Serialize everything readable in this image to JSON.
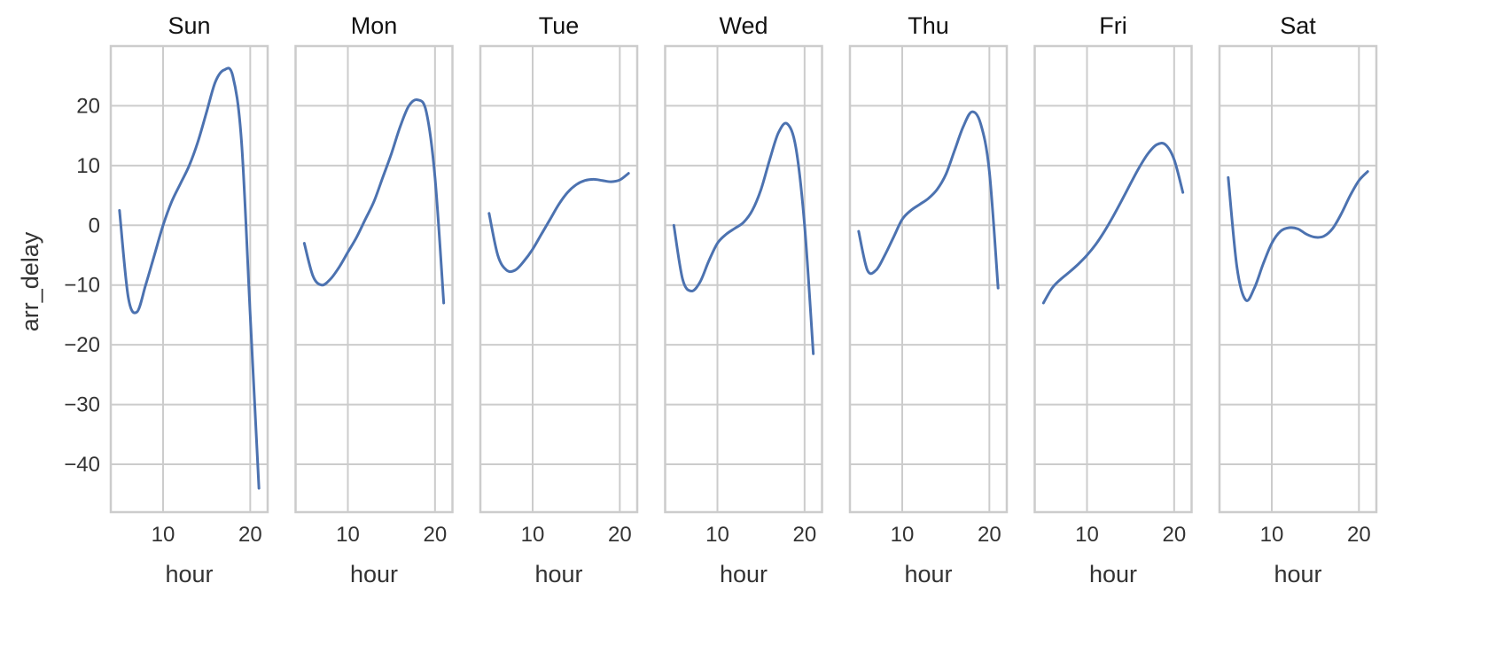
{
  "chart_data": {
    "type": "line",
    "facet": "day",
    "xlabel": "hour",
    "ylabel": "arr_delay",
    "xlim": [
      4,
      22
    ],
    "ylim": [
      -48,
      30
    ],
    "xticks": [
      10,
      20
    ],
    "yticks": [
      -40,
      -30,
      -20,
      -10,
      0,
      10,
      20
    ],
    "grid": true,
    "color": "#4c72b0",
    "panels": [
      {
        "title": "Sun",
        "x": [
          5,
          6,
          7,
          8,
          9,
          10,
          11,
          12,
          13,
          14,
          15,
          16,
          17,
          18,
          19,
          20,
          21
        ],
        "y": [
          2.5,
          -12,
          -14.5,
          -10,
          -5,
          0,
          4,
          7,
          10,
          14,
          19,
          24,
          26,
          25,
          14,
          -15,
          -44
        ]
      },
      {
        "title": "Mon",
        "x": [
          5,
          6,
          7,
          8,
          9,
          10,
          11,
          12,
          13,
          14,
          15,
          16,
          17,
          18,
          19,
          20,
          21
        ],
        "y": [
          -3,
          -8.5,
          -10,
          -9,
          -7,
          -4.5,
          -2,
          1,
          4,
          8,
          12,
          16.5,
          20,
          21,
          19,
          8,
          -13
        ]
      },
      {
        "title": "Tue",
        "x": [
          5,
          6,
          7,
          8,
          9,
          10,
          11,
          12,
          13,
          14,
          15,
          16,
          17,
          18,
          19,
          20,
          21
        ],
        "y": [
          2,
          -5,
          -7.5,
          -7.5,
          -6,
          -4,
          -1.5,
          1,
          3.5,
          5.5,
          6.8,
          7.5,
          7.7,
          7.5,
          7.3,
          7.6,
          8.7
        ]
      },
      {
        "title": "Wed",
        "x": [
          5,
          6,
          7,
          8,
          9,
          10,
          11,
          12,
          13,
          14,
          15,
          16,
          17,
          18,
          19,
          20,
          21
        ],
        "y": [
          0,
          -9,
          -11,
          -9.5,
          -6,
          -3,
          -1.5,
          -0.5,
          0.5,
          2.5,
          6,
          11,
          15.5,
          17,
          13,
          0,
          -21.5
        ]
      },
      {
        "title": "Thu",
        "x": [
          5,
          6,
          7,
          8,
          9,
          10,
          11,
          12,
          13,
          14,
          15,
          16,
          17,
          18,
          19,
          20,
          21
        ],
        "y": [
          -1,
          -7.5,
          -7.5,
          -5,
          -2,
          1,
          2.5,
          3.5,
          4.5,
          6,
          8.5,
          12.5,
          16.5,
          19,
          17,
          9,
          -10.5
        ]
      },
      {
        "title": "Fri",
        "x": [
          5,
          6,
          7,
          8,
          9,
          10,
          11,
          12,
          13,
          14,
          15,
          16,
          17,
          18,
          19,
          20,
          21
        ],
        "y": [
          -13,
          -10.5,
          -9,
          -7.8,
          -6.5,
          -5,
          -3.2,
          -1,
          1.5,
          4.2,
          7,
          9.7,
          12,
          13.5,
          13.5,
          11,
          5.5
        ]
      },
      {
        "title": "Sat",
        "x": [
          5,
          6,
          7,
          8,
          9,
          10,
          11,
          12,
          13,
          14,
          15,
          16,
          17,
          18,
          19,
          20,
          21
        ],
        "y": [
          8,
          -7,
          -12.5,
          -10.5,
          -6.5,
          -3,
          -1,
          -0.4,
          -0.6,
          -1.5,
          -2,
          -1.8,
          -0.5,
          2,
          5,
          7.5,
          9
        ]
      }
    ]
  }
}
